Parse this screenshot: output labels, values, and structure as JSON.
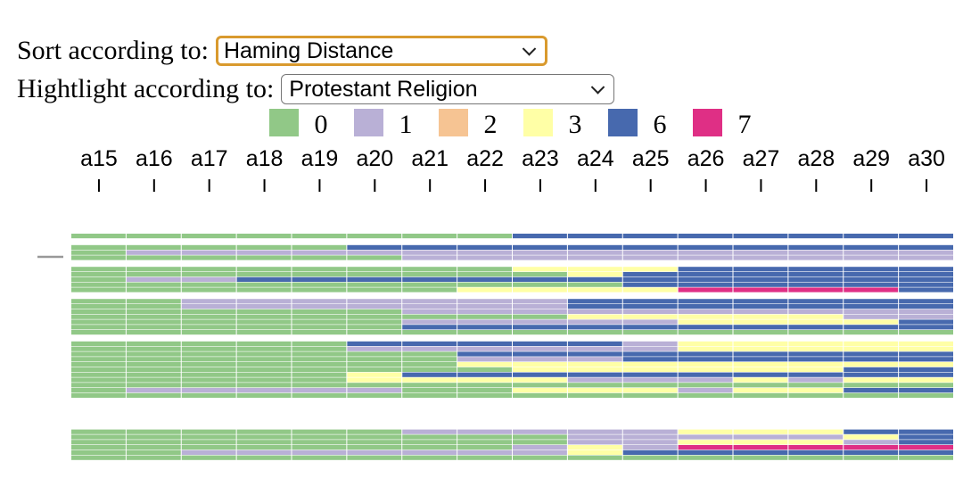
{
  "controls": {
    "sort_label": "Sort according to:",
    "sort_value": "Haming Distance",
    "highlight_label": "Hightlight according to:",
    "highlight_value": "Protestant Religion"
  },
  "chart_data": {
    "type": "heatmap",
    "columns": [
      "a15",
      "a16",
      "a17",
      "a18",
      "a19",
      "a20",
      "a21",
      "a22",
      "a23",
      "a24",
      "a25",
      "a26",
      "a27",
      "a28",
      "a29",
      "a30"
    ],
    "legend": [
      {
        "label": "0",
        "color": "#91c887"
      },
      {
        "label": "1",
        "color": "#b9b0d6"
      },
      {
        "label": "2",
        "color": "#f6c493"
      },
      {
        "label": "3",
        "color": "#ffffa6"
      },
      {
        "label": "6",
        "color": "#4769ae"
      },
      {
        "label": "7",
        "color": "#df2f85"
      }
    ],
    "groups": [
      {
        "rows": [
          [
            0,
            0,
            0,
            0,
            0,
            0,
            0,
            0,
            6,
            6,
            6,
            6,
            6,
            6,
            6,
            6
          ]
        ]
      },
      {
        "rows": [
          [
            0,
            0,
            0,
            0,
            0,
            6,
            6,
            6,
            6,
            6,
            6,
            6,
            6,
            6,
            6,
            6
          ],
          [
            0,
            1,
            1,
            1,
            1,
            1,
            1,
            1,
            1,
            1,
            1,
            1,
            1,
            1,
            1,
            1
          ],
          [
            0,
            0,
            0,
            0,
            0,
            0,
            1,
            1,
            1,
            1,
            1,
            1,
            1,
            1,
            1,
            1
          ]
        ]
      },
      {
        "rows": [
          [
            0,
            0,
            0,
            0,
            0,
            0,
            0,
            0,
            3,
            3,
            3,
            6,
            6,
            6,
            6,
            6
          ],
          [
            0,
            0,
            0,
            0,
            0,
            0,
            0,
            0,
            0,
            3,
            6,
            6,
            6,
            6,
            6,
            6
          ],
          [
            0,
            1,
            1,
            6,
            6,
            6,
            6,
            6,
            6,
            6,
            6,
            6,
            6,
            6,
            6,
            6
          ],
          [
            0,
            0,
            0,
            0,
            0,
            0,
            0,
            0,
            0,
            0,
            6,
            6,
            6,
            6,
            6,
            6
          ],
          [
            0,
            0,
            0,
            0,
            0,
            0,
            0,
            3,
            3,
            3,
            3,
            7,
            7,
            7,
            7,
            6
          ]
        ]
      },
      {
        "rows": [
          [
            0,
            0,
            1,
            1,
            1,
            1,
            1,
            1,
            1,
            6,
            6,
            6,
            6,
            6,
            6,
            6
          ],
          [
            0,
            0,
            1,
            1,
            1,
            1,
            1,
            1,
            1,
            6,
            6,
            6,
            6,
            6,
            6,
            6
          ],
          [
            0,
            0,
            0,
            0,
            0,
            0,
            1,
            1,
            1,
            1,
            1,
            1,
            1,
            1,
            1,
            1
          ],
          [
            0,
            0,
            0,
            0,
            0,
            0,
            0,
            0,
            0,
            3,
            3,
            3,
            3,
            3,
            1,
            1
          ],
          [
            0,
            0,
            0,
            0,
            0,
            0,
            1,
            1,
            1,
            1,
            1,
            3,
            3,
            3,
            3,
            6
          ],
          [
            0,
            0,
            0,
            0,
            0,
            0,
            6,
            6,
            6,
            6,
            6,
            6,
            6,
            6,
            6,
            6
          ],
          [
            0,
            0,
            0,
            0,
            0,
            0,
            0,
            0,
            0,
            0,
            0,
            0,
            0,
            0,
            0,
            0
          ]
        ]
      },
      {
        "rows": [
          [
            0,
            0,
            0,
            0,
            0,
            6,
            6,
            6,
            6,
            6,
            1,
            3,
            3,
            3,
            3,
            3
          ],
          [
            0,
            0,
            0,
            0,
            0,
            1,
            1,
            1,
            1,
            1,
            1,
            3,
            3,
            3,
            3,
            3
          ],
          [
            0,
            0,
            0,
            0,
            0,
            0,
            0,
            6,
            6,
            6,
            6,
            6,
            6,
            6,
            6,
            6
          ],
          [
            0,
            0,
            0,
            0,
            0,
            0,
            0,
            1,
            1,
            1,
            6,
            6,
            6,
            6,
            6,
            6
          ],
          [
            0,
            0,
            0,
            0,
            0,
            0,
            0,
            3,
            3,
            3,
            3,
            3,
            3,
            3,
            3,
            3
          ],
          [
            0,
            0,
            0,
            0,
            0,
            0,
            0,
            0,
            3,
            3,
            3,
            3,
            3,
            3,
            6,
            6
          ],
          [
            0,
            0,
            0,
            0,
            0,
            3,
            6,
            6,
            6,
            6,
            6,
            6,
            6,
            6,
            6,
            6
          ],
          [
            0,
            0,
            0,
            0,
            0,
            3,
            3,
            3,
            3,
            1,
            1,
            1,
            3,
            1,
            3,
            3
          ],
          [
            0,
            0,
            0,
            0,
            0,
            0,
            0,
            0,
            0,
            0,
            0,
            0,
            0,
            0,
            0,
            0
          ],
          [
            0,
            1,
            1,
            1,
            1,
            1,
            0,
            0,
            3,
            3,
            3,
            1,
            3,
            3,
            6,
            6
          ],
          [
            0,
            0,
            0,
            0,
            0,
            0,
            0,
            0,
            0,
            0,
            0,
            0,
            0,
            0,
            0,
            0
          ]
        ]
      },
      {
        "rows": []
      },
      {
        "rows": [
          [
            0,
            0,
            0,
            0,
            0,
            0,
            1,
            1,
            1,
            1,
            1,
            3,
            3,
            3,
            6,
            6
          ],
          [
            0,
            0,
            0,
            0,
            0,
            0,
            0,
            0,
            0,
            1,
            1,
            1,
            1,
            1,
            3,
            6
          ],
          [
            0,
            0,
            0,
            0,
            0,
            0,
            0,
            0,
            0,
            1,
            1,
            3,
            3,
            3,
            1,
            6
          ],
          [
            0,
            0,
            0,
            0,
            0,
            0,
            0,
            0,
            1,
            3,
            1,
            7,
            7,
            7,
            7,
            7
          ],
          [
            0,
            0,
            1,
            1,
            1,
            1,
            1,
            1,
            1,
            3,
            6,
            6,
            6,
            6,
            6,
            6
          ],
          [
            0,
            0,
            0,
            0,
            0,
            0,
            0,
            0,
            0,
            0,
            0,
            0,
            0,
            0,
            0,
            0
          ]
        ]
      }
    ]
  }
}
